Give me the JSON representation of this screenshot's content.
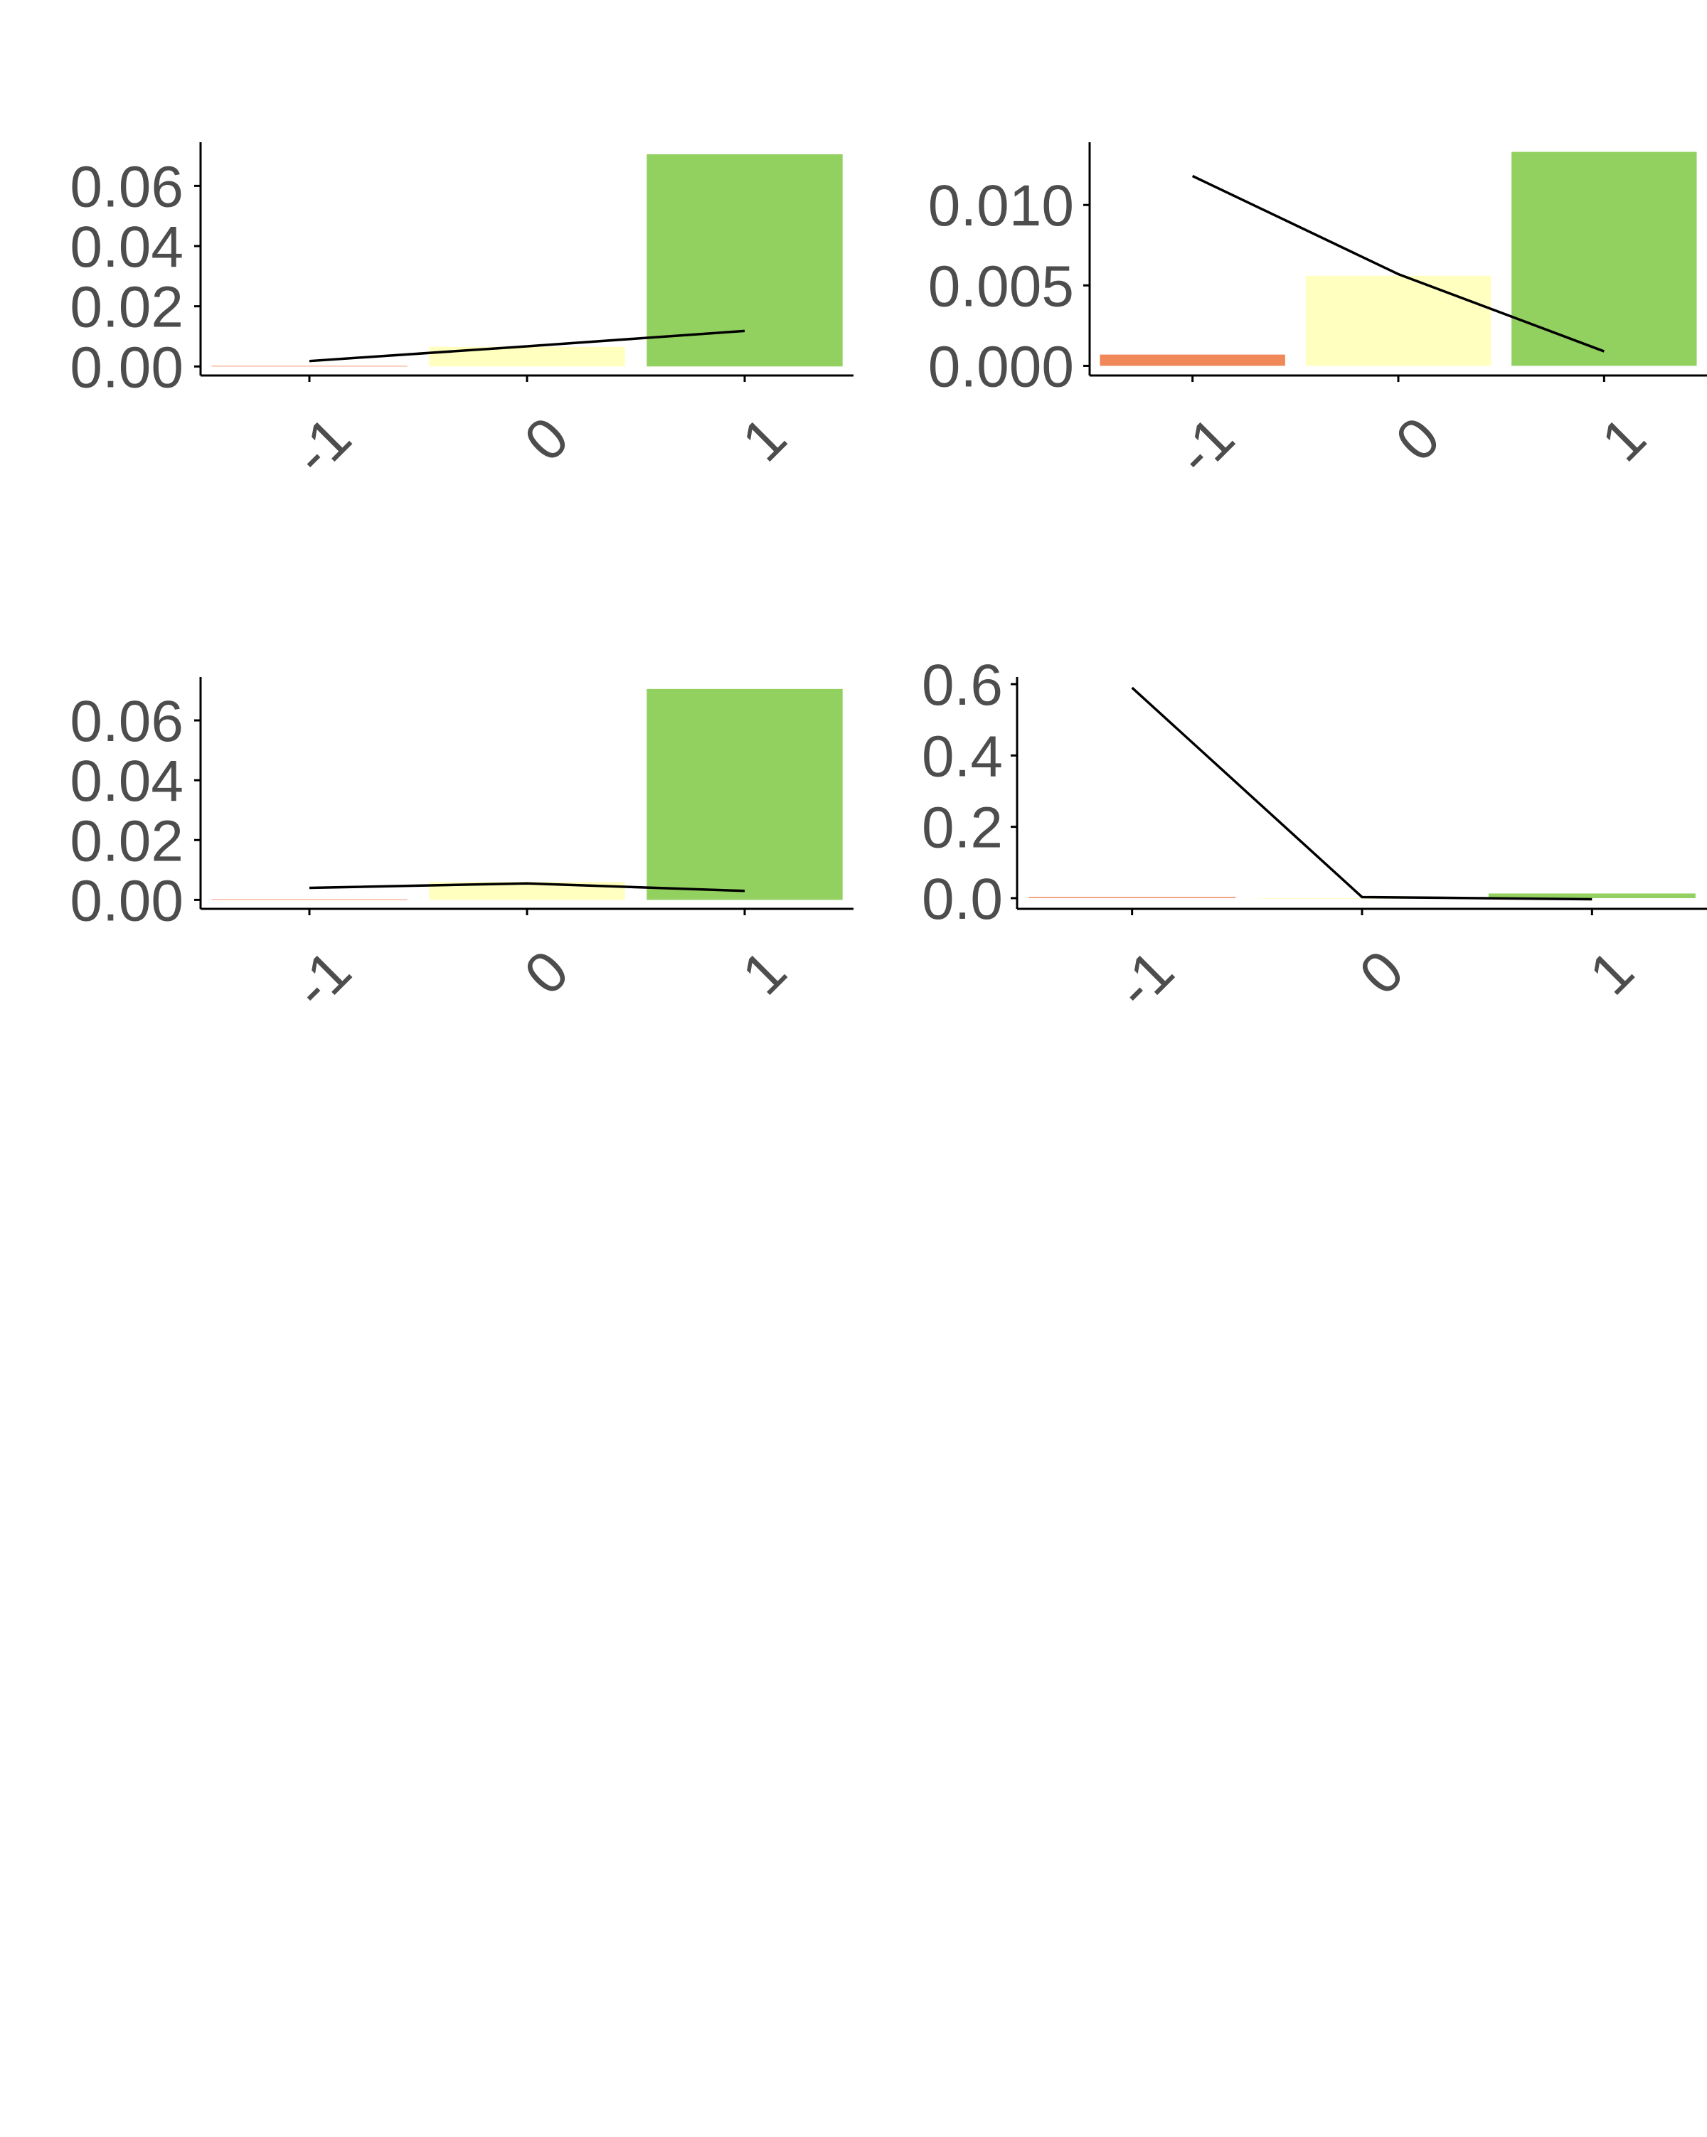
{
  "colors": {
    "negative": "#f0885a",
    "neutral": "#ffffc0",
    "positive": "#92d060",
    "line": "#000000",
    "axis": "#000000",
    "tick_text": "#4d4d4d"
  },
  "chart_data": [
    {
      "type": "bar",
      "categories": [
        "-1",
        "0",
        "1"
      ],
      "values": [
        0.0002,
        0.0065,
        0.0705
      ],
      "line_values": [
        0.0018,
        0.0067,
        0.0118
      ],
      "bar_colors": [
        "#f0885a",
        "#ffffc0",
        "#92d060"
      ],
      "ylim": [
        -0.003,
        0.0745
      ],
      "yticks": [
        0.0,
        0.02,
        0.04,
        0.06
      ],
      "ytick_labels": [
        "0.00",
        "0.02",
        "0.04",
        "0.06"
      ],
      "xtick_labels": [
        "-1",
        "0",
        "1"
      ],
      "title": "",
      "xlabel": "",
      "ylabel": "",
      "grid": false,
      "legend": "none"
    },
    {
      "type": "bar",
      "categories": [
        "-1",
        "0",
        "1"
      ],
      "values": [
        0.0007,
        0.0056,
        0.0133
      ],
      "line_values": [
        0.0118,
        0.0057,
        0.0009
      ],
      "bar_colors": [
        "#f0885a",
        "#ffffc0",
        "#92d060"
      ],
      "ylim": [
        -0.0006,
        0.0139
      ],
      "yticks": [
        0.0,
        0.005,
        0.01
      ],
      "ytick_labels": [
        "0.000",
        "0.005",
        "0.010"
      ],
      "xtick_labels": [
        "-1",
        "0",
        "1"
      ],
      "title": "",
      "xlabel": "",
      "ylabel": "",
      "grid": false,
      "legend": "none"
    },
    {
      "type": "bar",
      "categories": [
        "-1",
        "0",
        "1"
      ],
      "values": [
        0.0002,
        0.006,
        0.0705
      ],
      "line_values": [
        0.004,
        0.0055,
        0.003
      ],
      "bar_colors": [
        "#f0885a",
        "#ffffc0",
        "#92d060"
      ],
      "ylim": [
        -0.003,
        0.0745
      ],
      "yticks": [
        0.0,
        0.02,
        0.04,
        0.06
      ],
      "ytick_labels": [
        "0.00",
        "0.02",
        "0.04",
        "0.06"
      ],
      "xtick_labels": [
        "-1",
        "0",
        "1"
      ],
      "title": "",
      "xlabel": "",
      "ylabel": "",
      "grid": false,
      "legend": "none"
    },
    {
      "type": "bar",
      "categories": [
        "-1",
        "0",
        "1"
      ],
      "values": [
        0.003,
        0.0,
        0.013
      ],
      "line_values": [
        0.59,
        0.003,
        -0.003
      ],
      "bar_colors": [
        "#f0885a",
        "#ffffc0",
        "#92d060"
      ],
      "ylim": [
        -0.03,
        0.62
      ],
      "yticks": [
        0.0,
        0.2,
        0.4,
        0.6
      ],
      "ytick_labels": [
        "0.0",
        "0.2",
        "0.4",
        "0.6"
      ],
      "xtick_labels": [
        "-1",
        "0",
        "1"
      ],
      "title": "",
      "xlabel": "",
      "ylabel": "",
      "grid": false,
      "legend": "none"
    }
  ]
}
